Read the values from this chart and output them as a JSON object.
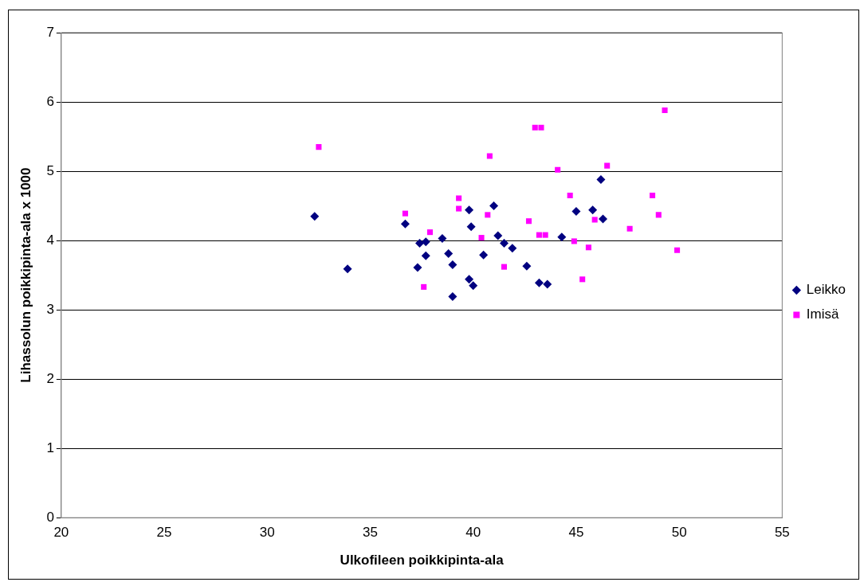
{
  "chart_data": {
    "type": "scatter",
    "xlabel": "Ulkofileen poikkipinta-ala",
    "ylabel": "Lihassolun poikkipinta-ala x 1000",
    "xlim": [
      20,
      55
    ],
    "xticks": [
      20,
      25,
      30,
      35,
      40,
      45,
      50,
      55
    ],
    "ylim": [
      0,
      7
    ],
    "yticks": [
      0,
      1,
      2,
      3,
      4,
      5,
      6,
      7
    ],
    "grid": "y",
    "legend": "right",
    "series": [
      {
        "name": "Leikko",
        "color": "#000080",
        "marker": "diamond",
        "x": [
          32.3,
          39.8,
          41.0,
          36.7,
          39.9,
          41.2,
          38.5,
          37.4,
          37.7,
          41.5,
          41.9,
          37.7,
          38.8,
          40.5,
          33.9,
          37.3,
          39.0,
          39.8,
          40.0,
          39.0,
          46.2,
          45.0,
          45.8,
          46.3,
          44.3,
          42.6,
          43.2,
          43.6
        ],
        "values": [
          4.35,
          4.44,
          4.5,
          4.24,
          4.2,
          4.07,
          4.03,
          3.96,
          3.98,
          3.96,
          3.89,
          3.78,
          3.81,
          3.79,
          3.59,
          3.61,
          3.65,
          3.44,
          3.35,
          3.19,
          4.88,
          4.42,
          4.44,
          4.31,
          4.05,
          3.63,
          3.39,
          3.37
        ]
      },
      {
        "name": "Imisä",
        "color": "#ff00ff",
        "marker": "square",
        "x": [
          32.5,
          40.8,
          39.3,
          39.3,
          36.7,
          40.7,
          37.9,
          40.4,
          41.5,
          37.6,
          49.3,
          43.0,
          43.3,
          44.1,
          46.5,
          44.7,
          48.7,
          49.0,
          42.7,
          45.9,
          47.6,
          43.2,
          43.5,
          44.9,
          45.6,
          49.9,
          45.3
        ],
        "values": [
          5.35,
          5.22,
          4.61,
          4.46,
          4.39,
          4.37,
          4.12,
          4.04,
          3.62,
          3.33,
          5.88,
          5.63,
          5.63,
          5.02,
          5.08,
          4.65,
          4.65,
          4.37,
          4.28,
          4.3,
          4.17,
          4.08,
          4.08,
          3.99,
          3.9,
          3.86,
          3.44
        ]
      }
    ]
  }
}
